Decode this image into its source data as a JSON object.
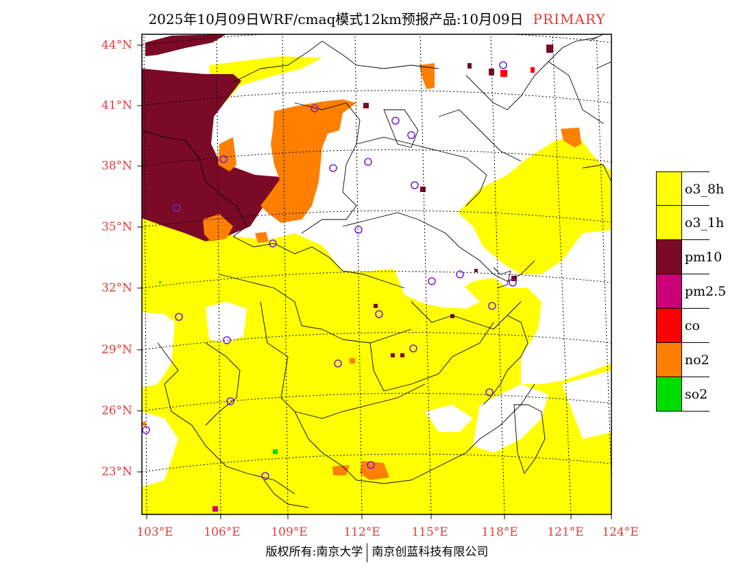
{
  "title": {
    "main": "2025年10月09日WRF/cmaq模式12km预报产品:10月09日",
    "label": "PRIMARY"
  },
  "axes": {
    "lat_labels": [
      "44°N",
      "41°N",
      "38°N",
      "35°N",
      "32°N",
      "29°N",
      "26°N",
      "23°N"
    ],
    "lon_labels": [
      "103°E",
      "106°E",
      "109°E",
      "112°E",
      "115°E",
      "118°E",
      "121°E",
      "124°E"
    ]
  },
  "legend": {
    "items": [
      {
        "label": "o3_8h",
        "color": "#ffff00"
      },
      {
        "label": "o3_1h",
        "color": "#ffff00"
      },
      {
        "label": "pm10",
        "color": "#7b0a26"
      },
      {
        "label": "pm2.5",
        "color": "#cc0077"
      },
      {
        "label": "co",
        "color": "#ff0000"
      },
      {
        "label": "no2",
        "color": "#ff7f00"
      },
      {
        "label": "so2",
        "color": "#00dd00"
      }
    ]
  },
  "footer": {
    "copyright": "版权所有:南京大学",
    "company": "南京创蓝科技有限公司"
  },
  "colors": {
    "tick_red": "#e23a3a",
    "yellow": "#ffff00",
    "maroon": "#7b0a26",
    "orange": "#ff7f00",
    "station_ring": "#7a1fd6"
  }
}
